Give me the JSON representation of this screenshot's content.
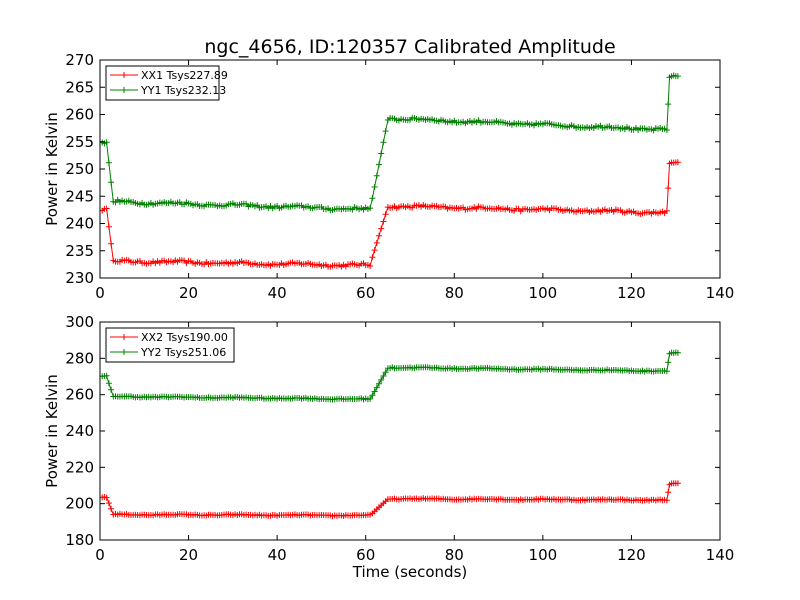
{
  "figure": {
    "title": "ngc_4656, ID:120357 Calibrated Amplitude"
  },
  "chart_data": [
    {
      "type": "line",
      "title": "ngc_4656, ID:120357 Calibrated Amplitude",
      "xlabel": "",
      "ylabel": "Power in Kelvin",
      "xlim": [
        0,
        140
      ],
      "ylim": [
        230,
        270
      ],
      "xticks": [
        "0",
        "20",
        "40",
        "60",
        "80",
        "100",
        "120",
        "140"
      ],
      "yticks": [
        "230",
        "235",
        "240",
        "245",
        "250",
        "255",
        "260",
        "265",
        "270"
      ],
      "grid": false,
      "legend_position": "top-left",
      "marker": "+",
      "series": [
        {
          "name": "XX1 Tsys227.89",
          "color": "#ff0000",
          "segments": [
            {
              "x_start": 0.5,
              "x_end": 1.5,
              "y": 242.5,
              "noise": 0.2
            },
            {
              "x_start": 1.5,
              "x_end": 3,
              "y_start": 242.5,
              "y_end": 233.2
            },
            {
              "x_start": 3,
              "x_end": 61,
              "y_start": 233.1,
              "y_end": 232.3,
              "noise": 0.25
            },
            {
              "x_start": 61,
              "x_end": 65,
              "y_start": 232.5,
              "y_end": 243.0
            },
            {
              "x_start": 65,
              "x_end": 128,
              "y_start": 243.2,
              "y_end": 242.0,
              "noise": 0.25
            },
            {
              "x_start": 128,
              "x_end": 128.6,
              "y_start": 242.0,
              "y_end": 251.0
            },
            {
              "x_start": 128.6,
              "x_end": 130.5,
              "y": 251.2,
              "noise": 0.1
            }
          ]
        },
        {
          "name": "YY1 Tsys232.13",
          "color": "#008000",
          "segments": [
            {
              "x_start": 0.5,
              "x_end": 1.5,
              "y": 254.7,
              "noise": 0.2
            },
            {
              "x_start": 1.5,
              "x_end": 3,
              "y_start": 254.7,
              "y_end": 244.0
            },
            {
              "x_start": 3,
              "x_end": 61,
              "y_start": 244.0,
              "y_end": 242.6,
              "noise": 0.25
            },
            {
              "x_start": 61,
              "x_end": 65,
              "y_start": 242.6,
              "y_end": 259.0
            },
            {
              "x_start": 65,
              "x_end": 128,
              "y_start": 259.3,
              "y_end": 257.2,
              "noise": 0.25
            },
            {
              "x_start": 128,
              "x_end": 128.6,
              "y_start": 257.0,
              "y_end": 266.8
            },
            {
              "x_start": 128.6,
              "x_end": 130.5,
              "y": 267.0,
              "noise": 0.1
            }
          ]
        }
      ]
    },
    {
      "type": "line",
      "title": "",
      "xlabel": "Time (seconds)",
      "ylabel": "Power in Kelvin",
      "xlim": [
        0,
        140
      ],
      "ylim": [
        180,
        300
      ],
      "xticks": [
        "0",
        "20",
        "40",
        "60",
        "80",
        "100",
        "120",
        "140"
      ],
      "yticks": [
        "180",
        "200",
        "220",
        "240",
        "260",
        "280",
        "300"
      ],
      "grid": false,
      "legend_position": "top-left",
      "marker": "+",
      "series": [
        {
          "name": "XX2 Tsys190.00",
          "color": "#ff0000",
          "segments": [
            {
              "x_start": 0.5,
              "x_end": 1.5,
              "y": 203.5,
              "noise": 0.3
            },
            {
              "x_start": 1.5,
              "x_end": 3,
              "y_start": 203.5,
              "y_end": 194.0
            },
            {
              "x_start": 3,
              "x_end": 61,
              "y_start": 194.0,
              "y_end": 193.5,
              "noise": 0.3
            },
            {
              "x_start": 61,
              "x_end": 65,
              "y_start": 193.5,
              "y_end": 202.5
            },
            {
              "x_start": 65,
              "x_end": 128,
              "y_start": 202.7,
              "y_end": 202.0,
              "noise": 0.3
            },
            {
              "x_start": 128,
              "x_end": 128.6,
              "y_start": 202.0,
              "y_end": 210.5
            },
            {
              "x_start": 128.6,
              "x_end": 130.5,
              "y": 211.0,
              "noise": 0.2
            }
          ]
        },
        {
          "name": "YY2 Tsys251.06",
          "color": "#008000",
          "segments": [
            {
              "x_start": 0.5,
              "x_end": 1.5,
              "y": 270.0,
              "noise": 0.3
            },
            {
              "x_start": 1.5,
              "x_end": 3,
              "y_start": 270.0,
              "y_end": 259.0
            },
            {
              "x_start": 3,
              "x_end": 61,
              "y_start": 259.0,
              "y_end": 257.5,
              "noise": 0.3
            },
            {
              "x_start": 61,
              "x_end": 65,
              "y_start": 257.5,
              "y_end": 274.5
            },
            {
              "x_start": 65,
              "x_end": 128,
              "y_start": 275.0,
              "y_end": 273.0,
              "noise": 0.3
            },
            {
              "x_start": 128,
              "x_end": 128.6,
              "y_start": 273.0,
              "y_end": 282.5
            },
            {
              "x_start": 128.6,
              "x_end": 130.5,
              "y": 283.0,
              "noise": 0.2
            }
          ]
        }
      ]
    }
  ]
}
